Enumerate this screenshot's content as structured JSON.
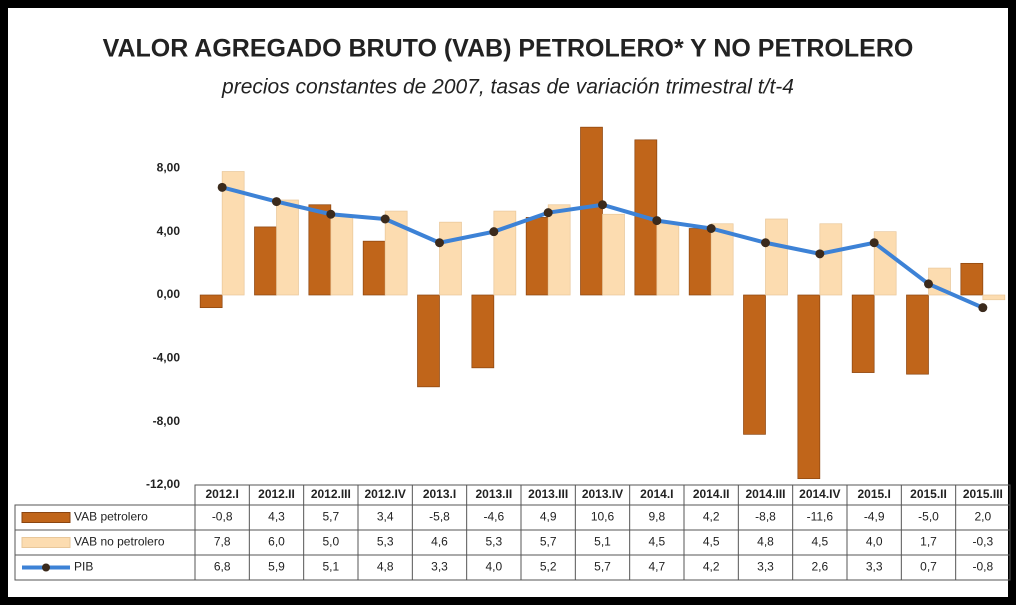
{
  "chart_data": {
    "type": "bar",
    "title": "VALOR AGREGADO BRUTO (VAB) PETROLERO* Y NO PETROLERO",
    "subtitle": "precios constantes de 2007, tasas de variación trimestral t/t-4",
    "categories": [
      "2012.I",
      "2012.II",
      "2012.III",
      "2012.IV",
      "2013.I",
      "2013.II",
      "2013.III",
      "2013.IV",
      "2014.I",
      "2014.II",
      "2014.III",
      "2014.IV",
      "2015.I",
      "2015.II",
      "2015.III"
    ],
    "series": [
      {
        "name": "VAB petrolero",
        "color": "#c0651a",
        "type": "bar",
        "values": [
          -0.8,
          4.3,
          5.7,
          3.4,
          -5.8,
          -4.6,
          4.9,
          10.6,
          9.8,
          4.2,
          -8.8,
          -11.6,
          -4.9,
          -5.0,
          2.0
        ],
        "value_labels": [
          "-0,8",
          "4,3",
          "5,7",
          "3,4",
          "-5,8",
          "-4,6",
          "4,9",
          "10,6",
          "9,8",
          "4,2",
          "-8,8",
          "-11,6",
          "-4,9",
          "-5,0",
          "2,0"
        ]
      },
      {
        "name": "VAB no petrolero",
        "color": "#fcdcb0",
        "type": "bar",
        "values": [
          7.8,
          6.0,
          5.0,
          5.3,
          4.6,
          5.3,
          5.7,
          5.1,
          4.5,
          4.5,
          4.8,
          4.5,
          4.0,
          1.7,
          -0.3
        ],
        "value_labels": [
          "7,8",
          "6,0",
          "5,0",
          "5,3",
          "4,6",
          "5,3",
          "5,7",
          "5,1",
          "4,5",
          "4,5",
          "4,8",
          "4,5",
          "4,0",
          "1,7",
          "-0,3"
        ]
      },
      {
        "name": "PIB",
        "color": "#3d82d6",
        "type": "line",
        "values": [
          6.8,
          5.9,
          5.1,
          4.8,
          3.3,
          4.0,
          5.2,
          5.7,
          4.7,
          4.2,
          3.3,
          2.6,
          3.3,
          0.7,
          -0.8
        ],
        "value_labels": [
          "6,8",
          "5,9",
          "5,1",
          "4,8",
          "3,3",
          "4,0",
          "5,2",
          "5,7",
          "4,7",
          "4,2",
          "3,3",
          "2,6",
          "3,3",
          "0,7",
          "-0,8"
        ]
      }
    ],
    "ylim": [
      -12,
      12
    ],
    "yticks": [
      {
        "value": -12,
        "label": "-12,00"
      },
      {
        "value": -8,
        "label": "-8,00"
      },
      {
        "value": -4,
        "label": "-4,00"
      },
      {
        "value": 0,
        "label": "0,00"
      },
      {
        "value": 4,
        "label": "4,00"
      },
      {
        "value": 8,
        "label": "8,00"
      }
    ]
  }
}
